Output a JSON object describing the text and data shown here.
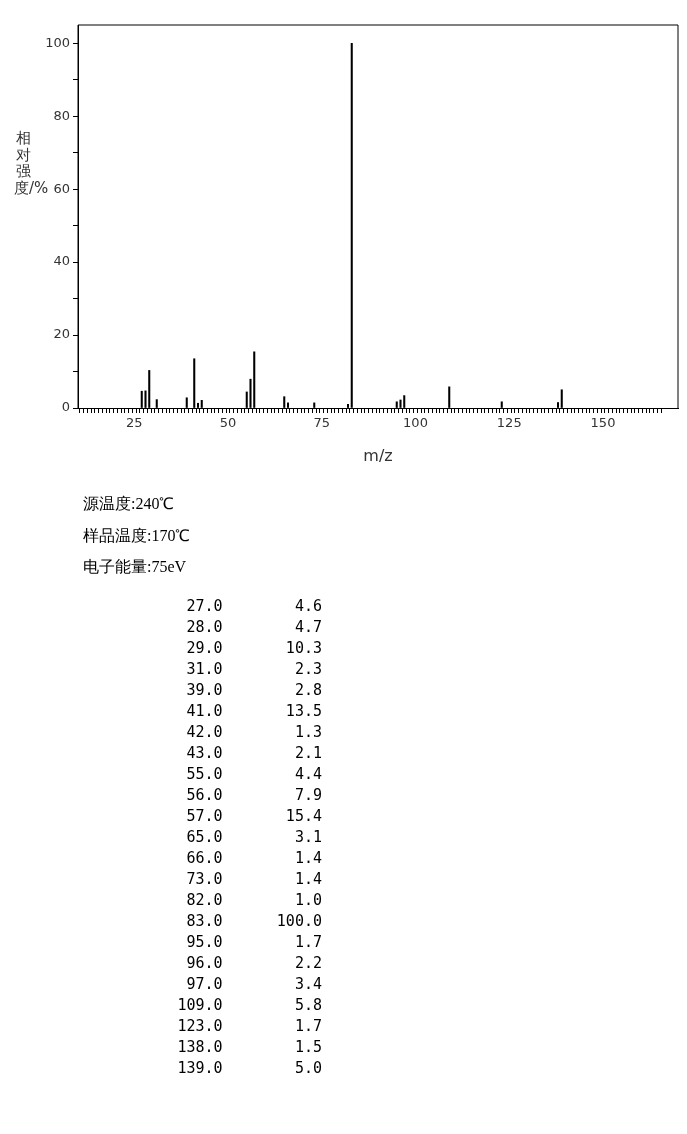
{
  "chart_data": {
    "type": "bar",
    "xlabel": "m/z",
    "ylabel": "相对强度/%",
    "color": "#000000",
    "grid": false,
    "legend": false,
    "x": [
      27,
      28,
      29,
      31,
      39,
      41,
      42,
      43,
      55,
      56,
      57,
      65,
      66,
      73,
      82,
      83,
      95,
      96,
      97,
      109,
      123,
      138,
      139
    ],
    "values": [
      4.6,
      4.7,
      10.3,
      2.3,
      2.8,
      13.5,
      1.3,
      2.1,
      4.4,
      7.9,
      15.4,
      3.1,
      1.4,
      1.4,
      1.0,
      100.0,
      1.7,
      2.2,
      3.4,
      5.8,
      1.7,
      1.5,
      5.0
    ],
    "xlim": [
      10,
      170
    ],
    "xticks": [
      {
        "value": 10,
        "label": null
      },
      {
        "value": 11,
        "label": null
      },
      {
        "value": 12,
        "label": null
      },
      {
        "value": 13,
        "label": null
      },
      {
        "value": 14,
        "label": null
      },
      {
        "value": 15,
        "label": null
      },
      {
        "value": 16,
        "label": null
      },
      {
        "value": 17,
        "label": null
      },
      {
        "value": 18,
        "label": null
      },
      {
        "value": 19,
        "label": null
      },
      {
        "value": 20,
        "label": null
      },
      {
        "value": 21,
        "label": null
      },
      {
        "value": 22,
        "label": null
      },
      {
        "value": 23,
        "label": null
      },
      {
        "value": 24,
        "label": null
      },
      25,
      {
        "value": 26,
        "label": null
      },
      {
        "value": 27,
        "label": null
      },
      {
        "value": 28,
        "label": null
      },
      {
        "value": 29,
        "label": null
      },
      {
        "value": 30,
        "label": null
      },
      {
        "value": 31,
        "label": null
      },
      {
        "value": 32,
        "label": null
      },
      {
        "value": 33,
        "label": null
      },
      {
        "value": 34,
        "label": null
      },
      {
        "value": 35,
        "label": null
      },
      {
        "value": 36,
        "label": null
      },
      {
        "value": 37,
        "label": null
      },
      {
        "value": 38,
        "label": null
      },
      {
        "value": 39,
        "label": null
      },
      {
        "value": 40,
        "label": null
      },
      {
        "value": 41,
        "label": null
      },
      {
        "value": 42,
        "label": null
      },
      {
        "value": 43,
        "label": null
      },
      {
        "value": 44,
        "label": null
      },
      {
        "value": 45,
        "label": null
      },
      {
        "value": 46,
        "label": null
      },
      {
        "value": 47,
        "label": null
      },
      {
        "value": 48,
        "label": null
      },
      {
        "value": 49,
        "label": null
      },
      50,
      {
        "value": 51,
        "label": null
      },
      {
        "value": 52,
        "label": null
      },
      {
        "value": 53,
        "label": null
      },
      {
        "value": 54,
        "label": null
      },
      {
        "value": 55,
        "label": null
      },
      {
        "value": 56,
        "label": null
      },
      {
        "value": 57,
        "label": null
      },
      {
        "value": 58,
        "label": null
      },
      {
        "value": 59,
        "label": null
      },
      {
        "value": 60,
        "label": null
      },
      {
        "value": 61,
        "label": null
      },
      {
        "value": 62,
        "label": null
      },
      {
        "value": 63,
        "label": null
      },
      {
        "value": 64,
        "label": null
      },
      {
        "value": 65,
        "label": null
      },
      {
        "value": 66,
        "label": null
      },
      {
        "value": 67,
        "label": null
      },
      {
        "value": 68,
        "label": null
      },
      {
        "value": 69,
        "label": null
      },
      {
        "value": 70,
        "label": null
      },
      {
        "value": 71,
        "label": null
      },
      {
        "value": 72,
        "label": null
      },
      {
        "value": 73,
        "label": null
      },
      {
        "value": 74,
        "label": null
      },
      75,
      {
        "value": 76,
        "label": null
      },
      {
        "value": 77,
        "label": null
      },
      {
        "value": 78,
        "label": null
      },
      {
        "value": 79,
        "label": null
      },
      {
        "value": 80,
        "label": null
      },
      {
        "value": 81,
        "label": null
      },
      {
        "value": 82,
        "label": null
      },
      {
        "value": 83,
        "label": null
      },
      {
        "value": 84,
        "label": null
      },
      {
        "value": 85,
        "label": null
      },
      {
        "value": 86,
        "label": null
      },
      {
        "value": 87,
        "label": null
      },
      {
        "value": 88,
        "label": null
      },
      {
        "value": 89,
        "label": null
      },
      {
        "value": 90,
        "label": null
      },
      {
        "value": 91,
        "label": null
      },
      {
        "value": 92,
        "label": null
      },
      {
        "value": 93,
        "label": null
      },
      {
        "value": 94,
        "label": null
      },
      {
        "value": 95,
        "label": null
      },
      {
        "value": 96,
        "label": null
      },
      {
        "value": 97,
        "label": null
      },
      {
        "value": 98,
        "label": null
      },
      {
        "value": 99,
        "label": null
      },
      100,
      {
        "value": 101,
        "label": null
      },
      {
        "value": 102,
        "label": null
      },
      {
        "value": 103,
        "label": null
      },
      {
        "value": 104,
        "label": null
      },
      {
        "value": 105,
        "label": null
      },
      {
        "value": 106,
        "label": null
      },
      {
        "value": 107,
        "label": null
      },
      {
        "value": 108,
        "label": null
      },
      {
        "value": 109,
        "label": null
      },
      {
        "value": 110,
        "label": null
      },
      {
        "value": 111,
        "label": null
      },
      {
        "value": 112,
        "label": null
      },
      {
        "value": 113,
        "label": null
      },
      {
        "value": 114,
        "label": null
      },
      {
        "value": 115,
        "label": null
      },
      {
        "value": 116,
        "label": null
      },
      {
        "value": 117,
        "label": null
      },
      {
        "value": 118,
        "label": null
      },
      {
        "value": 119,
        "label": null
      },
      {
        "value": 120,
        "label": null
      },
      {
        "value": 121,
        "label": null
      },
      {
        "value": 122,
        "label": null
      },
      {
        "value": 123,
        "label": null
      },
      {
        "value": 124,
        "label": null
      },
      125,
      {
        "value": 126,
        "label": null
      },
      {
        "value": 127,
        "label": null
      },
      {
        "value": 128,
        "label": null
      },
      {
        "value": 129,
        "label": null
      },
      {
        "value": 130,
        "label": null
      },
      {
        "value": 131,
        "label": null
      },
      {
        "value": 132,
        "label": null
      },
      {
        "value": 133,
        "label": null
      },
      {
        "value": 134,
        "label": null
      },
      {
        "value": 135,
        "label": null
      },
      {
        "value": 136,
        "label": null
      },
      {
        "value": 137,
        "label": null
      },
      {
        "value": 138,
        "label": null
      },
      {
        "value": 139,
        "label": null
      },
      {
        "value": 140,
        "label": null
      },
      {
        "value": 141,
        "label": null
      },
      {
        "value": 142,
        "label": null
      },
      {
        "value": 143,
        "label": null
      },
      {
        "value": 144,
        "label": null
      },
      {
        "value": 145,
        "label": null
      },
      {
        "value": 146,
        "label": null
      },
      {
        "value": 147,
        "label": null
      },
      {
        "value": 148,
        "label": null
      },
      {
        "value": 149,
        "label": null
      },
      150,
      {
        "value": 151,
        "label": null
      },
      {
        "value": 152,
        "label": null
      },
      {
        "value": 153,
        "label": null
      },
      {
        "value": 154,
        "label": null
      },
      {
        "value": 155,
        "label": null
      },
      {
        "value": 156,
        "label": null
      },
      {
        "value": 157,
        "label": null
      },
      {
        "value": 158,
        "label": null
      },
      {
        "value": 159,
        "label": null
      },
      {
        "value": 160,
        "label": null
      },
      {
        "value": 161,
        "label": null
      },
      {
        "value": 162,
        "label": null
      },
      {
        "value": 163,
        "label": null
      },
      {
        "value": 164,
        "label": null
      },
      {
        "value": 165,
        "label": null
      }
    ],
    "ylim": [
      0,
      105
    ],
    "yticks": [
      0,
      {
        "value": 10,
        "label": null
      },
      20,
      {
        "value": 30,
        "label": null
      },
      40,
      {
        "value": 50,
        "label": null
      },
      60,
      {
        "value": 70,
        "label": null
      },
      80,
      {
        "value": 90,
        "label": null
      },
      100
    ],
    "annotations": [
      "源温度:240℃",
      "样品温度:170℃",
      "电子能量:75eV",
      "27.0        4.6",
      "28.0        4.7",
      "29.0       10.3",
      "31.0        2.3",
      "39.0        2.8",
      "41.0       13.5",
      "42.0        1.3",
      "43.0        2.1",
      "55.0        4.4",
      "56.0        7.9",
      "57.0       15.4",
      "65.0        3.1",
      "66.0        1.4",
      "73.0        1.4",
      "82.0        1.0",
      "83.0      100.0",
      "95.0        1.7",
      "96.0        2.2",
      "97.0        3.4",
      "109.0        5.8",
      "123.0        1.7",
      "138.0        1.5",
      "139.0        5.0"
    ]
  }
}
